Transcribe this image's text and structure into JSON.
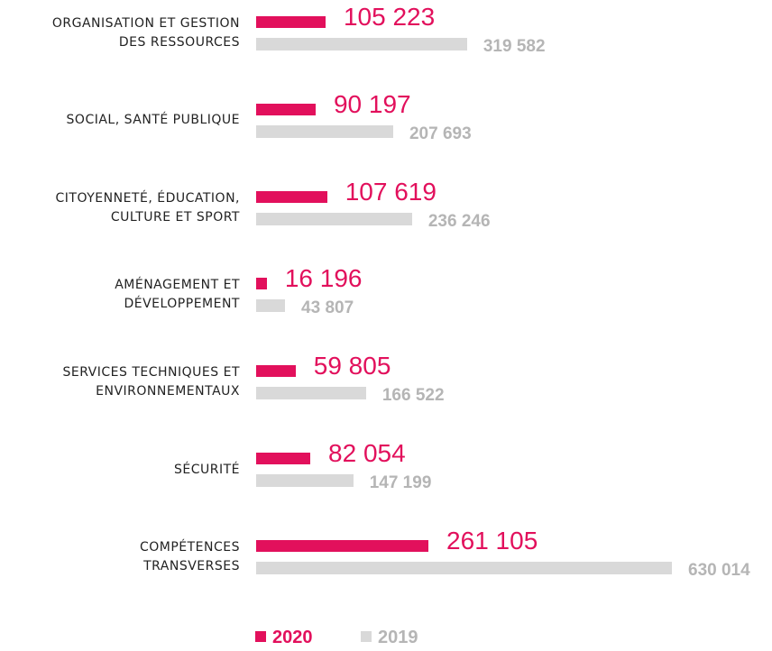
{
  "chart_data": {
    "type": "bar",
    "orientation": "horizontal",
    "categories": [
      "ORGANISATION ET GESTION\nDES RESSOURCES",
      "SOCIAL, SANTÉ PUBLIQUE",
      "CITOYENNETÉ, ÉDUCATION,\nCULTURE ET SPORT",
      "AMÉNAGEMENT ET\nDÉVELOPPEMENT",
      "SERVICES TECHNIQUES ET\nENVIRONNEMENTAUX",
      "SÉCURITÉ",
      "COMPÉTENCES\nTRANSVERSES"
    ],
    "series": [
      {
        "name": "2020",
        "color": "#e2105c",
        "values": [
          105223,
          90197,
          107619,
          16196,
          59805,
          82054,
          261105
        ],
        "value_labels": [
          "105 223",
          "90 197",
          "107 619",
          "16 196",
          "59 805",
          "82 054",
          "261 105"
        ]
      },
      {
        "name": "2019",
        "color": "#d9d9d9",
        "values": [
          319582,
          207693,
          236246,
          43807,
          166522,
          147199,
          630014
        ],
        "value_labels": [
          "319 582",
          "207 693",
          "236 246",
          "43 807",
          "166 522",
          "147 199",
          "630 014"
        ]
      }
    ]
  }
}
